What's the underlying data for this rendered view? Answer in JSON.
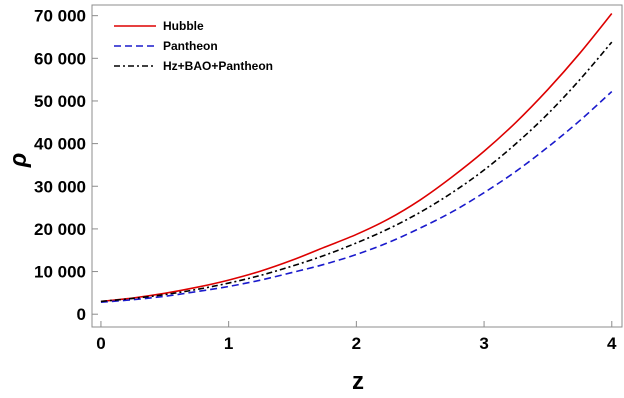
{
  "chart_data": {
    "type": "line",
    "title": "",
    "xlabel": "z",
    "ylabel": "ρ",
    "xlim": [
      -0.07,
      4.08
    ],
    "ylim": [
      -3000,
      72500
    ],
    "x_ticks": [
      0,
      1,
      2,
      3,
      4
    ],
    "x_tick_labels": [
      "0",
      "1",
      "2",
      "3",
      "4"
    ],
    "y_ticks": [
      0,
      10000,
      20000,
      30000,
      40000,
      50000,
      60000,
      70000
    ],
    "y_tick_labels": [
      "0",
      "10 000",
      "20 000",
      "30 000",
      "40 000",
      "50 000",
      "60 000",
      "70 000"
    ],
    "grid": false,
    "legend_position": "top-left",
    "x": [
      0,
      0.25,
      0.5,
      0.75,
      1,
      1.25,
      1.5,
      1.75,
      2,
      2.25,
      2.5,
      2.75,
      3,
      3.25,
      3.5,
      3.75,
      4
    ],
    "series": [
      {
        "name": "Hubble",
        "color": "#dd0000",
        "style": "solid",
        "values": [
          3000,
          3800,
          4900,
          6300,
          8000,
          10100,
          12700,
          15700,
          18700,
          22300,
          26800,
          32200,
          38200,
          45000,
          52700,
          61200,
          70500
        ]
      },
      {
        "name": "Pantheon",
        "color": "#1a1acc",
        "style": "dashed",
        "values": [
          2800,
          3400,
          4200,
          5300,
          6500,
          8000,
          9800,
          11700,
          14000,
          16800,
          20200,
          24000,
          28500,
          33500,
          39200,
          45400,
          52200
        ]
      },
      {
        "name": "Hz+BAO+Pantheon",
        "color": "#000000",
        "style": "dashdot",
        "values": [
          3000,
          3700,
          4600,
          5800,
          7300,
          9100,
          11300,
          13800,
          16700,
          20000,
          23900,
          28500,
          33800,
          40000,
          47000,
          55000,
          63800
        ]
      }
    ]
  }
}
